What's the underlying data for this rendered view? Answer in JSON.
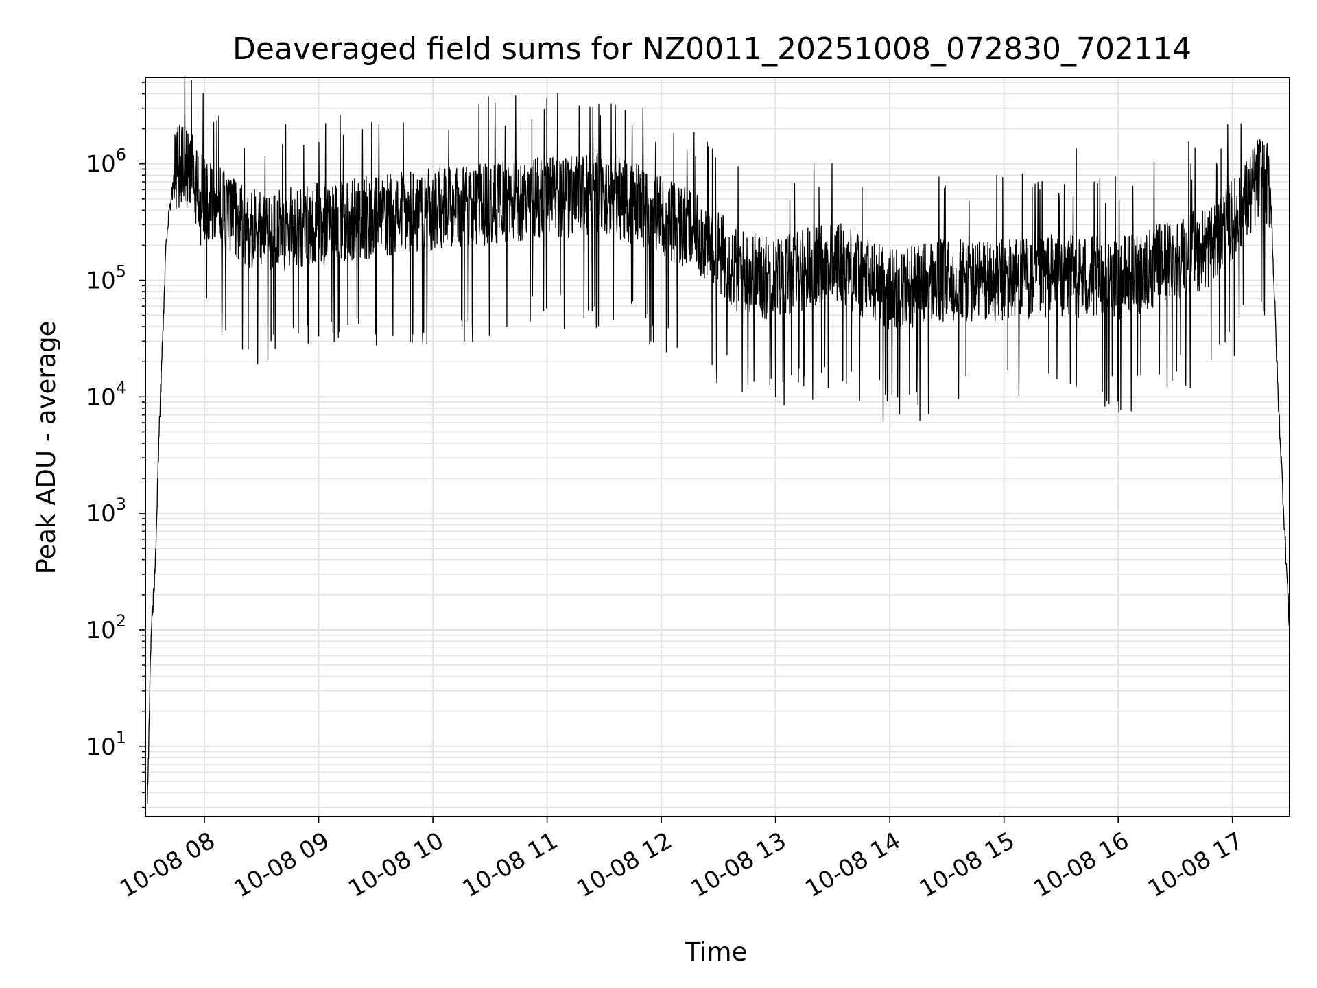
{
  "chart_data": {
    "type": "line",
    "title": "Deaveraged field sums for NZ0011_20251008_072830_702114",
    "xlabel": "Time",
    "ylabel": "Peak ADU - average",
    "xscale": "time",
    "yscale": "log",
    "xlim": [
      "2025-10-08T07:29",
      "2025-10-08T17:30"
    ],
    "ylim": [
      2.5,
      5500000
    ],
    "grid": true,
    "x_tick_labels": [
      "10-08 08",
      "10-08 09",
      "10-08 10",
      "10-08 11",
      "10-08 12",
      "10-08 13",
      "10-08 14",
      "10-08 15",
      "10-08 16",
      "10-08 17"
    ],
    "y_tick_labels": [
      {
        "base": "10",
        "exp": "1"
      },
      {
        "base": "10",
        "exp": "2"
      },
      {
        "base": "10",
        "exp": "3"
      },
      {
        "base": "10",
        "exp": "4"
      },
      {
        "base": "10",
        "exp": "5"
      },
      {
        "base": "10",
        "exp": "6"
      }
    ],
    "series": [
      {
        "color": "#000000",
        "points": [
          {
            "t": "2025-10-08T07:30",
            "y": 3
          },
          {
            "t": "2025-10-08T07:32",
            "y": 100
          },
          {
            "t": "2025-10-08T07:34",
            "y": 300
          },
          {
            "t": "2025-10-08T07:36",
            "y": 4000
          },
          {
            "t": "2025-10-08T07:38",
            "y": 30000
          },
          {
            "t": "2025-10-08T07:40",
            "y": 250000
          },
          {
            "t": "2025-10-08T07:45",
            "y": 900000
          },
          {
            "t": "2025-10-08T07:50",
            "y": 1000000
          },
          {
            "t": "2025-10-08T08:00",
            "y": 500000
          },
          {
            "t": "2025-10-08T08:15",
            "y": 350000
          },
          {
            "t": "2025-10-08T08:30",
            "y": 250000
          },
          {
            "t": "2025-10-08T09:00",
            "y": 300000
          },
          {
            "t": "2025-10-08T09:30",
            "y": 350000
          },
          {
            "t": "2025-10-08T10:00",
            "y": 400000
          },
          {
            "t": "2025-10-08T10:30",
            "y": 450000
          },
          {
            "t": "2025-10-08T11:00",
            "y": 500000
          },
          {
            "t": "2025-10-08T11:30",
            "y": 550000
          },
          {
            "t": "2025-10-08T11:45",
            "y": 450000
          },
          {
            "t": "2025-10-08T12:00",
            "y": 350000
          },
          {
            "t": "2025-10-08T12:20",
            "y": 250000
          },
          {
            "t": "2025-10-08T12:40",
            "y": 120000
          },
          {
            "t": "2025-10-08T13:00",
            "y": 100000
          },
          {
            "t": "2025-10-08T13:30",
            "y": 150000
          },
          {
            "t": "2025-10-08T14:00",
            "y": 80000
          },
          {
            "t": "2025-10-08T14:30",
            "y": 100000
          },
          {
            "t": "2025-10-08T15:00",
            "y": 100000
          },
          {
            "t": "2025-10-08T15:30",
            "y": 110000
          },
          {
            "t": "2025-10-08T16:00",
            "y": 100000
          },
          {
            "t": "2025-10-08T16:30",
            "y": 150000
          },
          {
            "t": "2025-10-08T16:50",
            "y": 200000
          },
          {
            "t": "2025-10-08T17:05",
            "y": 400000
          },
          {
            "t": "2025-10-08T17:15",
            "y": 800000
          },
          {
            "t": "2025-10-08T17:20",
            "y": 600000
          },
          {
            "t": "2025-10-08T17:24",
            "y": 10000
          },
          {
            "t": "2025-10-08T17:27",
            "y": 1000
          },
          {
            "t": "2025-10-08T17:30",
            "y": 100
          }
        ],
        "spikes": [
          {
            "t": "2025-10-08T07:45",
            "y": 1500000
          },
          {
            "t": "2025-10-08T07:58",
            "y": 200000
          },
          {
            "t": "2025-10-08T08:35",
            "y": 30000
          },
          {
            "t": "2025-10-08T09:00",
            "y": 33000
          },
          {
            "t": "2025-10-08T10:15",
            "y": 45000
          },
          {
            "t": "2025-10-08T10:52",
            "y": 2400000
          },
          {
            "t": "2025-10-08T11:41",
            "y": 2900000
          },
          {
            "t": "2025-10-08T13:15",
            "y": 15000
          },
          {
            "t": "2025-10-08T13:59",
            "y": 11000
          },
          {
            "t": "2025-10-08T14:40",
            "y": 15000
          },
          {
            "t": "2025-10-08T15:02",
            "y": 17000
          },
          {
            "t": "2025-10-08T15:38",
            "y": 1350000
          },
          {
            "t": "2025-10-08T16:37",
            "y": 1550000
          },
          {
            "t": "2025-10-08T16:54",
            "y": 1350000
          }
        ]
      }
    ]
  }
}
